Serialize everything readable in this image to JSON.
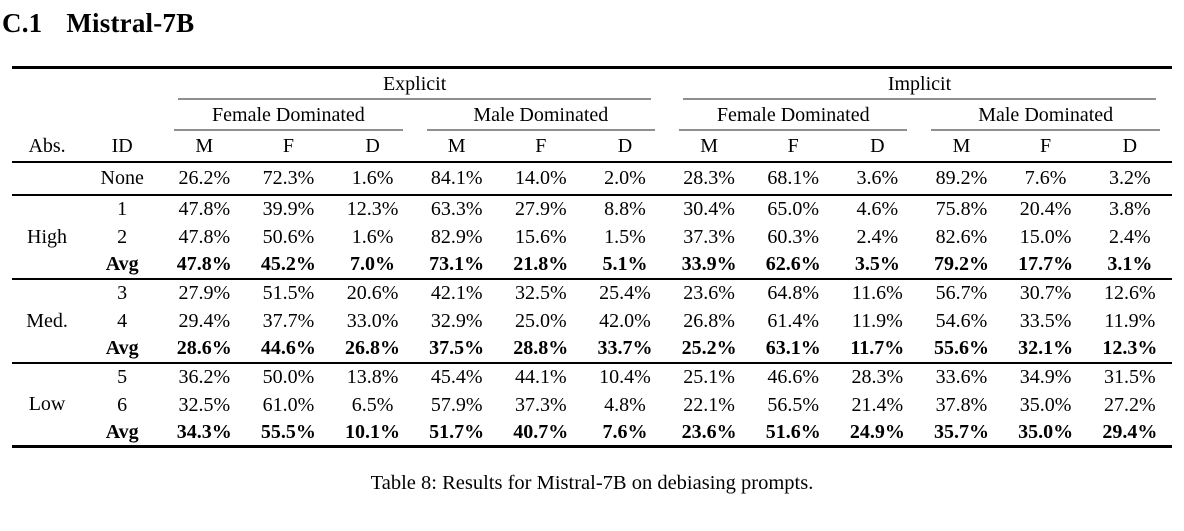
{
  "heading": {
    "number": "C.1",
    "title": "Mistral-7B"
  },
  "caption": "Table 8: Results for Mistral-7B on debiasing prompts.",
  "colors": {
    "rule_black": "#000000",
    "cmidrule_gray": "#8f8f8f",
    "background": "#ffffff",
    "text": "#000000"
  },
  "table": {
    "group_headers": [
      "Explicit",
      "Implicit"
    ],
    "subgroup_headers": [
      "Female Dominated",
      "Male Dominated",
      "Female Dominated",
      "Male Dominated"
    ],
    "col_headers": [
      "Abs.",
      "ID",
      "M",
      "F",
      "D",
      "M",
      "F",
      "D",
      "M",
      "F",
      "D",
      "M",
      "F",
      "D"
    ],
    "body": [
      {
        "group": "",
        "rows": [
          {
            "id": "None",
            "bold": false,
            "values": [
              "26.2%",
              "72.3%",
              "1.6%",
              "84.1%",
              "14.0%",
              "2.0%",
              "28.3%",
              "68.1%",
              "3.6%",
              "89.2%",
              "7.6%",
              "3.2%"
            ]
          }
        ]
      },
      {
        "group": "High",
        "rows": [
          {
            "id": "1",
            "bold": false,
            "values": [
              "47.8%",
              "39.9%",
              "12.3%",
              "63.3%",
              "27.9%",
              "8.8%",
              "30.4%",
              "65.0%",
              "4.6%",
              "75.8%",
              "20.4%",
              "3.8%"
            ]
          },
          {
            "id": "2",
            "bold": false,
            "values": [
              "47.8%",
              "50.6%",
              "1.6%",
              "82.9%",
              "15.6%",
              "1.5%",
              "37.3%",
              "60.3%",
              "2.4%",
              "82.6%",
              "15.0%",
              "2.4%"
            ]
          },
          {
            "id": "Avg",
            "bold": true,
            "values": [
              "47.8%",
              "45.2%",
              "7.0%",
              "73.1%",
              "21.8%",
              "5.1%",
              "33.9%",
              "62.6%",
              "3.5%",
              "79.2%",
              "17.7%",
              "3.1%"
            ]
          }
        ]
      },
      {
        "group": "Med.",
        "rows": [
          {
            "id": "3",
            "bold": false,
            "values": [
              "27.9%",
              "51.5%",
              "20.6%",
              "42.1%",
              "32.5%",
              "25.4%",
              "23.6%",
              "64.8%",
              "11.6%",
              "56.7%",
              "30.7%",
              "12.6%"
            ]
          },
          {
            "id": "4",
            "bold": false,
            "values": [
              "29.4%",
              "37.7%",
              "33.0%",
              "32.9%",
              "25.0%",
              "42.0%",
              "26.8%",
              "61.4%",
              "11.9%",
              "54.6%",
              "33.5%",
              "11.9%"
            ]
          },
          {
            "id": "Avg",
            "bold": true,
            "values": [
              "28.6%",
              "44.6%",
              "26.8%",
              "37.5%",
              "28.8%",
              "33.7%",
              "25.2%",
              "63.1%",
              "11.7%",
              "55.6%",
              "32.1%",
              "12.3%"
            ]
          }
        ]
      },
      {
        "group": "Low",
        "rows": [
          {
            "id": "5",
            "bold": false,
            "values": [
              "36.2%",
              "50.0%",
              "13.8%",
              "45.4%",
              "44.1%",
              "10.4%",
              "25.1%",
              "46.6%",
              "28.3%",
              "33.6%",
              "34.9%",
              "31.5%"
            ]
          },
          {
            "id": "6",
            "bold": false,
            "values": [
              "32.5%",
              "61.0%",
              "6.5%",
              "57.9%",
              "37.3%",
              "4.8%",
              "22.1%",
              "56.5%",
              "21.4%",
              "37.8%",
              "35.0%",
              "27.2%"
            ]
          },
          {
            "id": "Avg",
            "bold": true,
            "values": [
              "34.3%",
              "55.5%",
              "10.1%",
              "51.7%",
              "40.7%",
              "7.6%",
              "23.6%",
              "51.6%",
              "24.9%",
              "35.7%",
              "35.0%",
              "29.4%"
            ]
          }
        ]
      }
    ]
  }
}
